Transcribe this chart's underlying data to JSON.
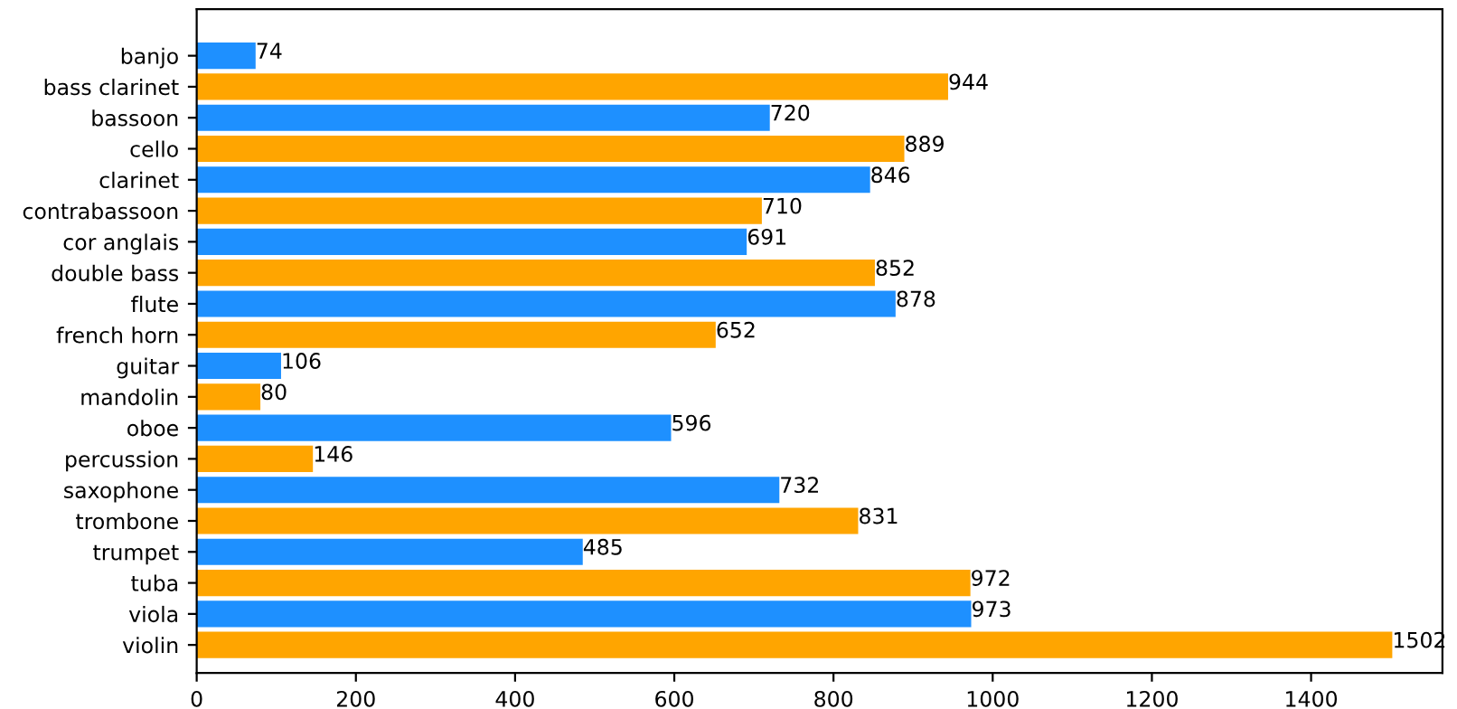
{
  "chart_data": {
    "type": "bar",
    "orientation": "horizontal",
    "categories": [
      "banjo",
      "bass clarinet",
      "bassoon",
      "cello",
      "clarinet",
      "contrabassoon",
      "cor anglais",
      "double bass",
      "flute",
      "french horn",
      "guitar",
      "mandolin",
      "oboe",
      "percussion",
      "saxophone",
      "trombone",
      "trumpet",
      "tuba",
      "viola",
      "violin"
    ],
    "values": [
      74,
      944,
      720,
      889,
      846,
      710,
      691,
      852,
      878,
      652,
      106,
      80,
      596,
      146,
      732,
      831,
      485,
      972,
      973,
      1502
    ],
    "colors": [
      "#1e90ff",
      "#ffa500",
      "#1e90ff",
      "#ffa500",
      "#1e90ff",
      "#ffa500",
      "#1e90ff",
      "#ffa500",
      "#1e90ff",
      "#ffa500",
      "#1e90ff",
      "#ffa500",
      "#1e90ff",
      "#ffa500",
      "#1e90ff",
      "#ffa500",
      "#1e90ff",
      "#ffa500",
      "#1e90ff",
      "#ffa500"
    ],
    "xlim": [
      0,
      1565
    ],
    "xticks": [
      0,
      200,
      400,
      600,
      800,
      1000,
      1200,
      1400
    ],
    "data_labels": true,
    "grid": false
  }
}
